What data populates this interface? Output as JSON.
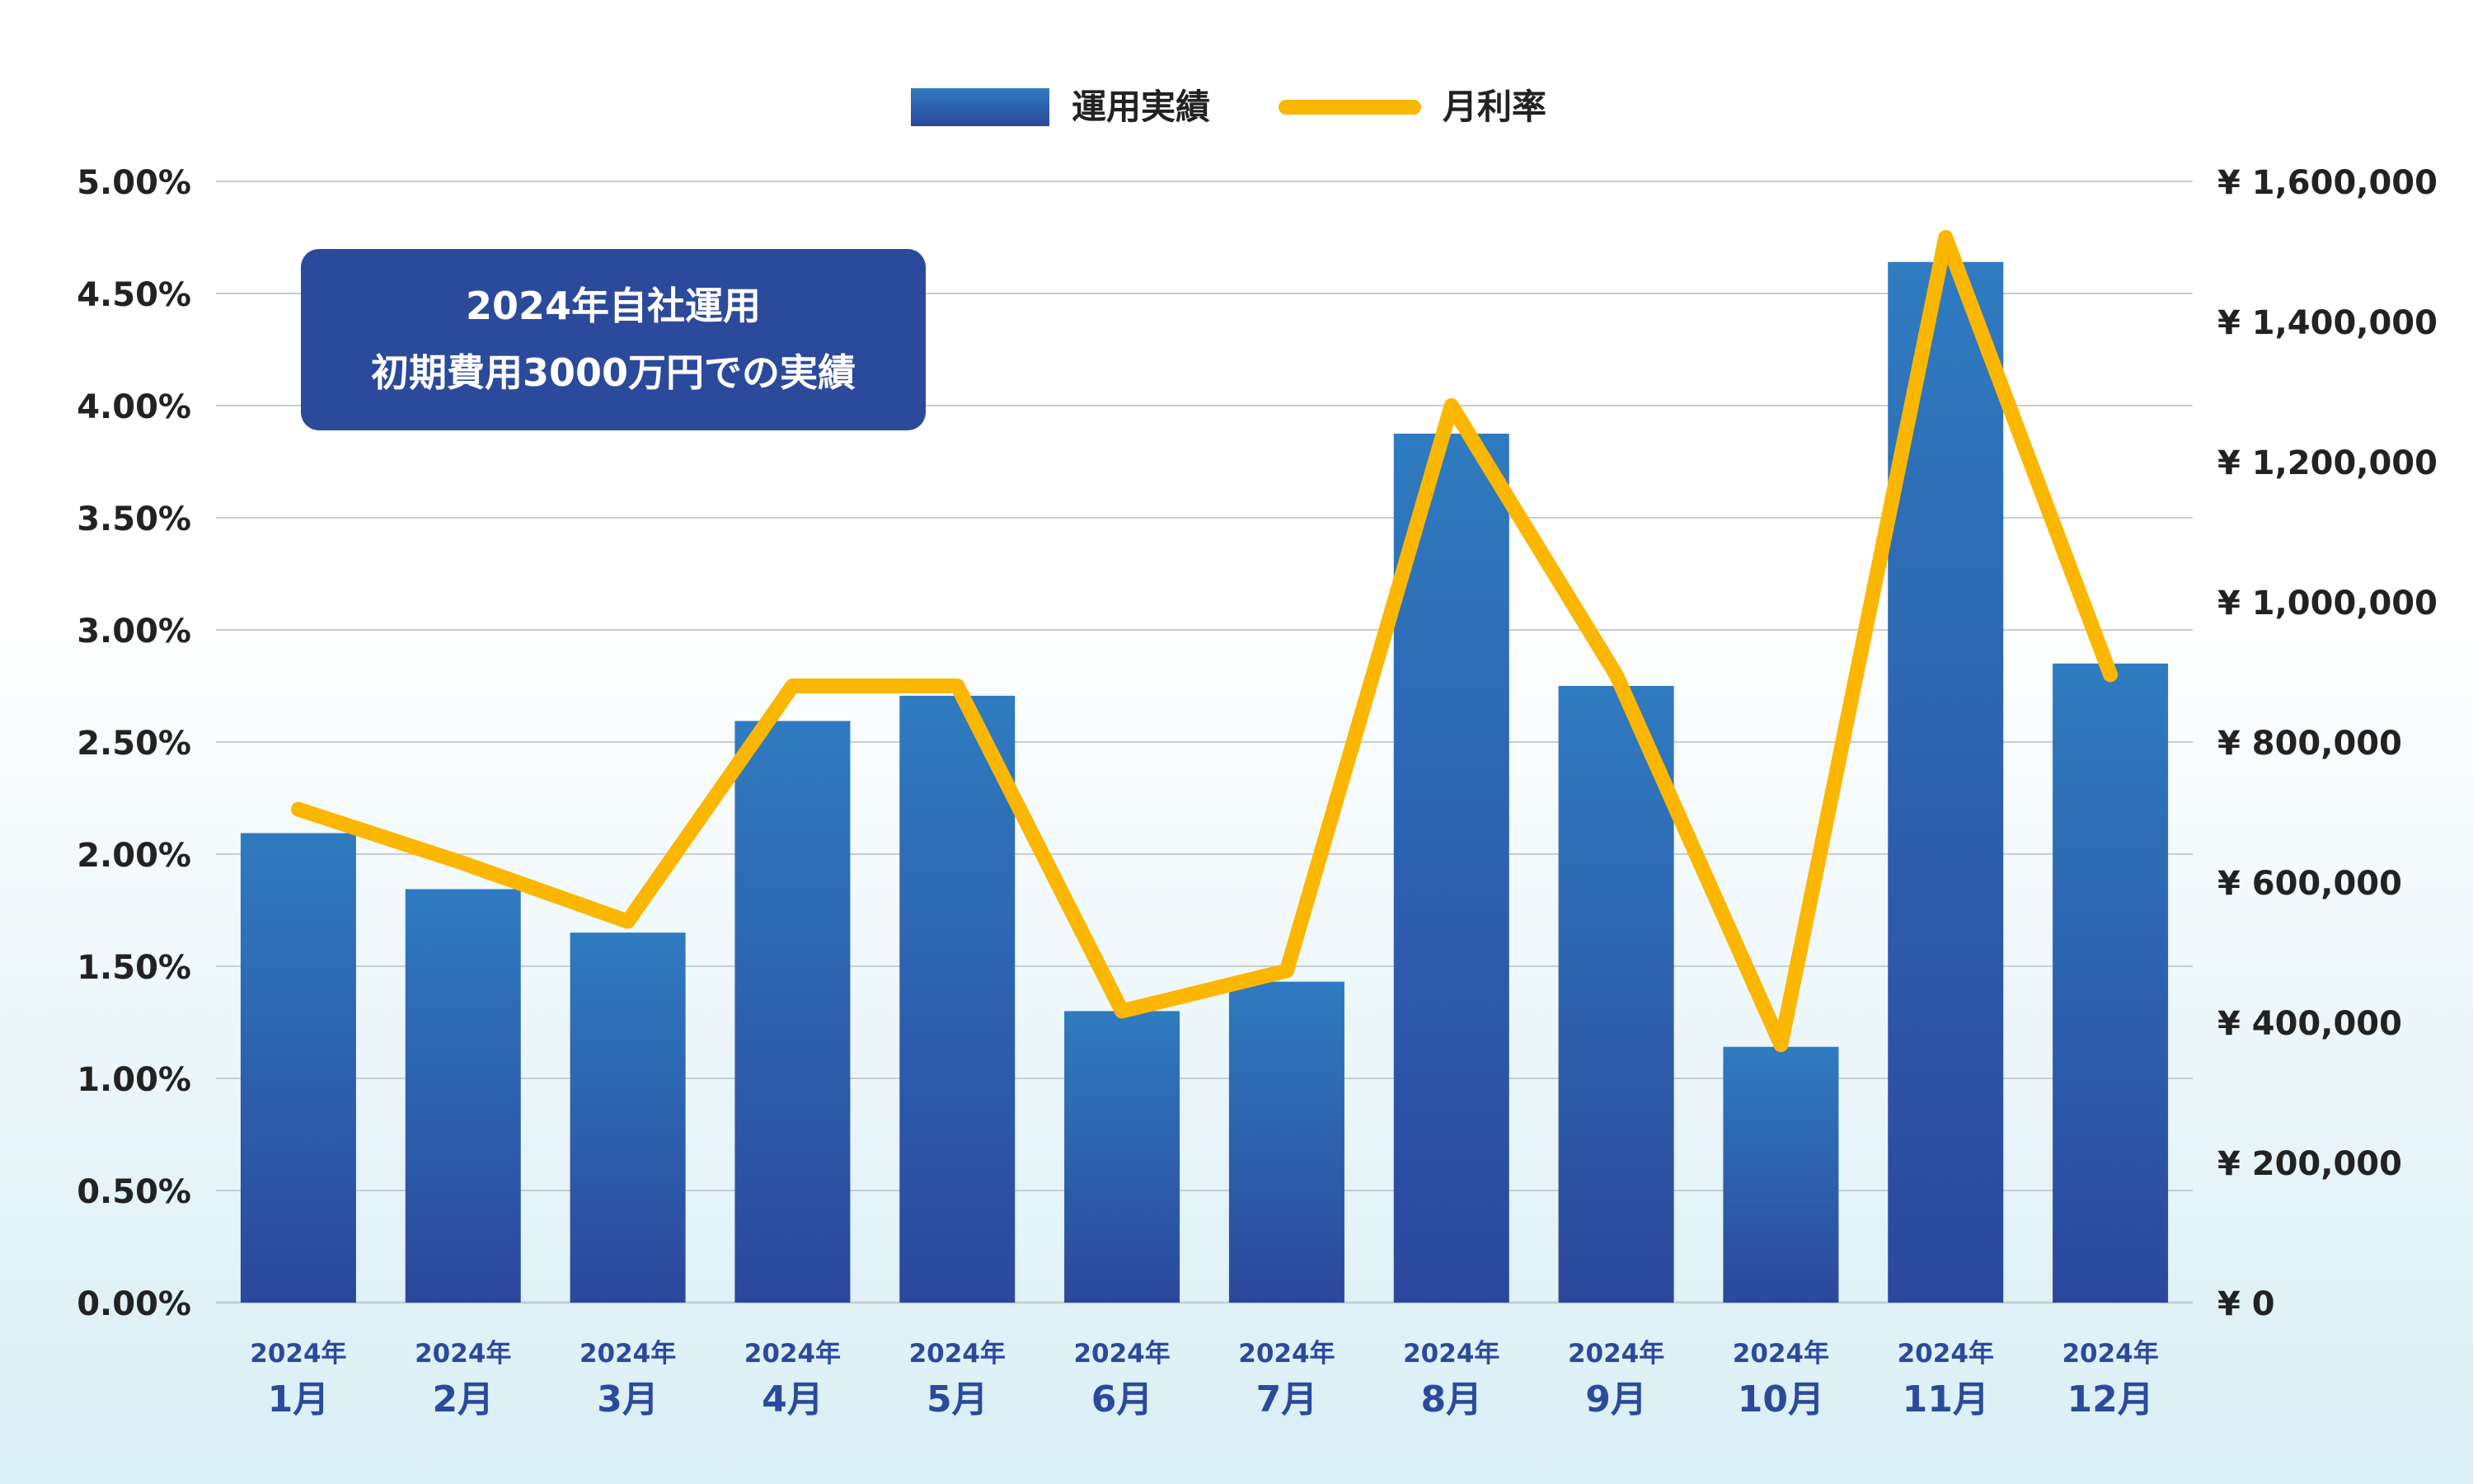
{
  "chart_data": {
    "type": "bar",
    "categories_year": [
      "2024年",
      "2024年",
      "2024年",
      "2024年",
      "2024年",
      "2024年",
      "2024年",
      "2024年",
      "2024年",
      "2024年",
      "2024年",
      "2024年"
    ],
    "categories_month": [
      "1月",
      "2月",
      "3月",
      "4月",
      "5月",
      "6月",
      "7月",
      "8月",
      "9月",
      "10月",
      "11月",
      "12月"
    ],
    "series": [
      {
        "name": "運用実績",
        "type": "bar",
        "axis": "right",
        "values": [
          670000,
          590000,
          528000,
          830000,
          866000,
          416000,
          458000,
          1240000,
          880000,
          365000,
          1485000,
          912000
        ]
      },
      {
        "name": "月利率",
        "type": "line",
        "axis": "left",
        "values": [
          2.2,
          1.96,
          1.7,
          2.75,
          2.75,
          1.3,
          1.48,
          4.0,
          2.8,
          1.15,
          4.75,
          2.8
        ]
      }
    ],
    "y_left": {
      "min": 0,
      "max": 5,
      "ticks": [
        "0.00%",
        "0.50%",
        "1.00%",
        "1.50%",
        "2.00%",
        "2.50%",
        "3.00%",
        "3.50%",
        "4.00%",
        "4.50%",
        "5.00%"
      ]
    },
    "y_right": {
      "min": 0,
      "max": 1600000,
      "ticks": [
        "¥ 0",
        "¥ 200,000",
        "¥ 400,000",
        "¥ 600,000",
        "¥ 800,000",
        "¥ 1,000,000",
        "¥ 1,200,000",
        "¥ 1,400,000",
        "¥ 1,600,000"
      ]
    },
    "grid": true,
    "legend_position": "top-center",
    "annotation": {
      "line1": "2024年自社運用",
      "line2": "初期費用3000万円での実績"
    },
    "colors": {
      "bar_top": "#2f7bc0",
      "bar_bottom": "#2b479c",
      "line": "#fbb700",
      "annotation_bg": "#2b4a9c",
      "month_label": "#2b4a9c",
      "axis_text": "#222222",
      "grid": "#c8cdd3"
    }
  }
}
